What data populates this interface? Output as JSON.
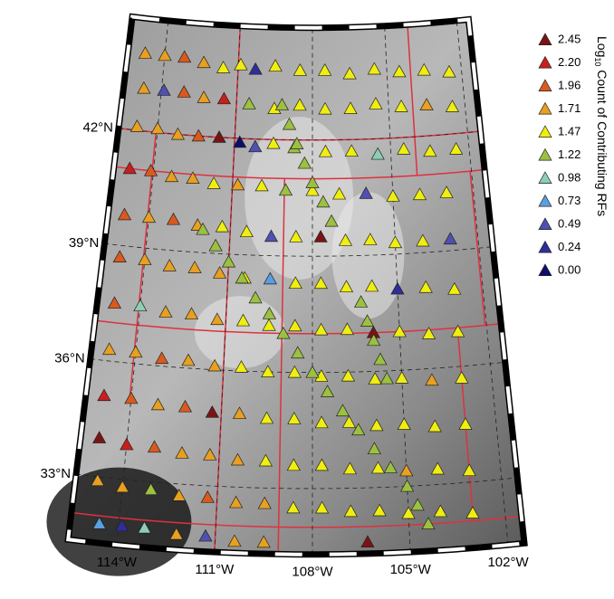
{
  "map": {
    "legend": {
      "title_prefix": "Log",
      "title_sub": "10",
      "title_suffix": " Count of Contributing RFs",
      "entries": [
        {
          "value": 2.45,
          "label": "2.45",
          "color": "#7a1414"
        },
        {
          "value": 2.2,
          "label": "2.20",
          "color": "#c81e1e"
        },
        {
          "value": 1.96,
          "label": "1.96",
          "color": "#d95a1e"
        },
        {
          "value": 1.71,
          "label": "1.71",
          "color": "#e8a020"
        },
        {
          "value": 1.47,
          "label": "1.47",
          "color": "#f0ee10"
        },
        {
          "value": 1.22,
          "label": "1.22",
          "color": "#9cc040"
        },
        {
          "value": 0.98,
          "label": "0.98",
          "color": "#8ccfb4"
        },
        {
          "value": 0.73,
          "label": "0.73",
          "color": "#5a9fe0"
        },
        {
          "value": 0.49,
          "label": "0.49",
          "color": "#5050b0"
        },
        {
          "value": 0.24,
          "label": "0.24",
          "color": "#2e2e9a"
        },
        {
          "value": 0,
          "label": "0.00",
          "color": "#0e0e6a"
        }
      ]
    },
    "lat_ticks": [
      {
        "value": 42,
        "label": "42°N"
      },
      {
        "value": 39,
        "label": "39°N"
      },
      {
        "value": 36,
        "label": "36°N"
      },
      {
        "value": 33,
        "label": "33°N"
      }
    ],
    "lon_ticks": [
      {
        "value": -114,
        "label": "114°W"
      },
      {
        "value": -111,
        "label": "111°W"
      },
      {
        "value": -108,
        "label": "108°W"
      },
      {
        "value": -105,
        "label": "105°W"
      },
      {
        "value": -102,
        "label": "102°W"
      }
    ],
    "lonlim": [
      -115.5,
      -101.5
    ],
    "latlim": [
      31.3,
      44.9
    ],
    "stations": [
      [
        -114.8,
        44.0,
        1.71
      ],
      [
        -114,
        44,
        1.71
      ],
      [
        -113.2,
        44,
        1.96
      ],
      [
        -112.4,
        43.9,
        1.71
      ],
      [
        -111.6,
        43.8,
        1.47
      ],
      [
        -110.9,
        43.9,
        1.47
      ],
      [
        -110.3,
        43.8,
        0.24
      ],
      [
        -109.5,
        43.9,
        1.47
      ],
      [
        -108.5,
        43.8,
        1.47
      ],
      [
        -107.5,
        43.8,
        1.47
      ],
      [
        -106.5,
        43.7,
        1.47
      ],
      [
        -105.5,
        43.8,
        1.47
      ],
      [
        -104.5,
        43.7,
        1.47
      ],
      [
        -103.5,
        43.7,
        1.47
      ],
      [
        -102.5,
        43.6,
        1.47
      ],
      [
        -114.7,
        43.1,
        1.71
      ],
      [
        -113.9,
        43.1,
        0.49
      ],
      [
        -113.1,
        43.1,
        1.96
      ],
      [
        -112.3,
        43,
        1.71
      ],
      [
        -111.5,
        43,
        2.2
      ],
      [
        -110.5,
        42.9,
        1.22
      ],
      [
        -109.5,
        42.8,
        1.47
      ],
      [
        -108.5,
        42.9,
        1.47
      ],
      [
        -107.5,
        42.8,
        1.47
      ],
      [
        -106.5,
        42.8,
        1.47
      ],
      [
        -105.5,
        42.9,
        1.47
      ],
      [
        -104.5,
        42.8,
        1.47
      ],
      [
        -103.5,
        42.8,
        1.71
      ],
      [
        -102.5,
        42.7,
        1.47
      ],
      [
        -114.8,
        42.1,
        1.71
      ],
      [
        -114,
        42.1,
        1.71
      ],
      [
        -113.2,
        42,
        1.71
      ],
      [
        -112.4,
        42,
        1.96
      ],
      [
        -111.6,
        42,
        2.45
      ],
      [
        -110.8,
        41.9,
        0
      ],
      [
        -110.2,
        41.8,
        0.49
      ],
      [
        -109.5,
        41.9,
        1.47
      ],
      [
        -108.7,
        41.8,
        1.22
      ],
      [
        -107.5,
        41.7,
        1.47
      ],
      [
        -106.5,
        41.7,
        1.47
      ],
      [
        -105.5,
        41.6,
        0.98
      ],
      [
        -104.5,
        41.7,
        1.47
      ],
      [
        -103.5,
        41.6,
        1.47
      ],
      [
        -102.5,
        41.6,
        1.47
      ],
      [
        -114.9,
        41,
        2.2
      ],
      [
        -114.1,
        41,
        1.96
      ],
      [
        -113.3,
        40.9,
        1.71
      ],
      [
        -112.5,
        40.9,
        1.71
      ],
      [
        -111.7,
        40.8,
        1.47
      ],
      [
        -110.8,
        40.8,
        1.71
      ],
      [
        -109.9,
        40.8,
        1.47
      ],
      [
        -109,
        40.7,
        1.22
      ],
      [
        -108,
        40.7,
        1.47
      ],
      [
        -107,
        40.6,
        1.47
      ],
      [
        -106,
        40.6,
        0.49
      ],
      [
        -105,
        40.5,
        1.47
      ],
      [
        -104,
        40.5,
        1.47
      ],
      [
        -103,
        40.5,
        1.47
      ],
      [
        -114.9,
        39.8,
        1.96
      ],
      [
        -114,
        39.8,
        1.71
      ],
      [
        -113.1,
        39.8,
        1.96
      ],
      [
        -112.2,
        39.7,
        1.71
      ],
      [
        -111.3,
        39.7,
        1.47
      ],
      [
        -110.4,
        39.6,
        1.47
      ],
      [
        -109.5,
        39.5,
        0.49
      ],
      [
        -108.6,
        39.5,
        1.47
      ],
      [
        -107.7,
        39.5,
        2.45
      ],
      [
        -106.8,
        39.4,
        1.47
      ],
      [
        -105.9,
        39.4,
        1.47
      ],
      [
        -105,
        39.3,
        1.47
      ],
      [
        -104,
        39.3,
        1.47
      ],
      [
        -103,
        39.3,
        0.49
      ],
      [
        -114.9,
        38.7,
        1.96
      ],
      [
        -114,
        38.7,
        1.71
      ],
      [
        -113.1,
        38.6,
        1.71
      ],
      [
        -112.2,
        38.6,
        1.71
      ],
      [
        -111.3,
        38.5,
        1.71
      ],
      [
        -110.4,
        38.4,
        1.47
      ],
      [
        -109.5,
        38.4,
        0.73
      ],
      [
        -108.6,
        38.3,
        1.47
      ],
      [
        -107.7,
        38.3,
        1.47
      ],
      [
        -106.8,
        38.2,
        1.47
      ],
      [
        -105.9,
        38.2,
        1.47
      ],
      [
        -105,
        38.1,
        0.24
      ],
      [
        -104,
        38.1,
        1.47
      ],
      [
        -103,
        38,
        1.47
      ],
      [
        -114.9,
        37.5,
        1.96
      ],
      [
        -114,
        37.5,
        0.98
      ],
      [
        -113.1,
        37.4,
        1.71
      ],
      [
        -112.2,
        37.4,
        1.71
      ],
      [
        -111.3,
        37.3,
        1.71
      ],
      [
        -110.4,
        37.3,
        1.47
      ],
      [
        -109.5,
        37.2,
        1.47
      ],
      [
        -108.6,
        37.2,
        1.47
      ],
      [
        -107.7,
        37.1,
        1.47
      ],
      [
        -106.8,
        37.1,
        1.47
      ],
      [
        -105.9,
        37,
        2.45
      ],
      [
        -105,
        37,
        1.47
      ],
      [
        -104,
        36.9,
        1.47
      ],
      [
        -103,
        36.9,
        1.47
      ],
      [
        -114.9,
        36.3,
        1.71
      ],
      [
        -114,
        36.3,
        1.71
      ],
      [
        -113.1,
        36.2,
        1.96
      ],
      [
        -112.2,
        36.2,
        1.71
      ],
      [
        -111.3,
        36.1,
        1.71
      ],
      [
        -110.4,
        36.1,
        1.47
      ],
      [
        -109.5,
        36,
        1.47
      ],
      [
        -108.6,
        36,
        1.47
      ],
      [
        -107.7,
        35.9,
        1.47
      ],
      [
        -106.8,
        35.9,
        1.47
      ],
      [
        -105.9,
        35.8,
        1.47
      ],
      [
        -105,
        35.8,
        1.47
      ],
      [
        -104,
        35.7,
        1.71
      ],
      [
        -103,
        35.7,
        1.47
      ],
      [
        -114.9,
        35.1,
        2.2
      ],
      [
        -114,
        35.1,
        1.96
      ],
      [
        -113.1,
        35,
        1.71
      ],
      [
        -112.2,
        35,
        1.96
      ],
      [
        -111.3,
        34.9,
        2.45
      ],
      [
        -110.4,
        34.9,
        1.71
      ],
      [
        -109.5,
        34.8,
        1.47
      ],
      [
        -108.6,
        34.8,
        1.47
      ],
      [
        -107.7,
        34.7,
        1.47
      ],
      [
        -106.8,
        34.7,
        1.47
      ],
      [
        -105.9,
        34.6,
        1.47
      ],
      [
        -105,
        34.6,
        1.47
      ],
      [
        -104,
        34.5,
        1.47
      ],
      [
        -103,
        34.5,
        1.47
      ],
      [
        -114.9,
        34,
        2.45
      ],
      [
        -114,
        33.9,
        2.2
      ],
      [
        -113.1,
        33.9,
        1.96
      ],
      [
        -112.2,
        33.8,
        1.71
      ],
      [
        -111.3,
        33.8,
        1.71
      ],
      [
        -110.4,
        33.7,
        1.71
      ],
      [
        -109.5,
        33.7,
        1.47
      ],
      [
        -108.6,
        33.6,
        1.47
      ],
      [
        -107.7,
        33.6,
        1.47
      ],
      [
        -106.8,
        33.5,
        1.47
      ],
      [
        -105.9,
        33.5,
        1.47
      ],
      [
        -105,
        33.4,
        1.71
      ],
      [
        -104,
        33.4,
        1.47
      ],
      [
        -103,
        33.3,
        1.47
      ],
      [
        -114.8,
        32.9,
        1.71
      ],
      [
        -114,
        32.8,
        1.71
      ],
      [
        -113.1,
        32.8,
        1.22
      ],
      [
        -112.2,
        32.7,
        1.71
      ],
      [
        -111.3,
        32.7,
        1.96
      ],
      [
        -110.4,
        32.6,
        1.71
      ],
      [
        -109.5,
        32.6,
        1.71
      ],
      [
        -108.6,
        32.5,
        1.47
      ],
      [
        -107.7,
        32.5,
        1.47
      ],
      [
        -106.8,
        32.4,
        1.47
      ],
      [
        -105.9,
        32.4,
        1.47
      ],
      [
        -105,
        32.3,
        1.47
      ],
      [
        -104,
        32.3,
        1.47
      ],
      [
        -103,
        32.2,
        1.47
      ],
      [
        -114.6,
        31.8,
        0.73
      ],
      [
        -113.9,
        31.8,
        0.24
      ],
      [
        -113.2,
        31.8,
        0.98
      ],
      [
        -112.2,
        31.7,
        1.71
      ],
      [
        -111.3,
        31.7,
        0.49
      ],
      [
        -110.4,
        31.6,
        1.71
      ],
      [
        -109.5,
        31.6,
        1.71
      ],
      [
        -106.3,
        31.6,
        2.45
      ],
      [
        -112,
        39.6,
        1.22
      ],
      [
        -111.5,
        39.2,
        1.22
      ],
      [
        -111,
        38.8,
        1.22
      ],
      [
        -110.5,
        38.4,
        1.22
      ],
      [
        -110,
        37.9,
        1.22
      ],
      [
        -109.5,
        37.5,
        1.22
      ],
      [
        -109,
        37,
        1.22
      ],
      [
        -108.5,
        36.5,
        1.22
      ],
      [
        -108,
        36,
        1.22
      ],
      [
        -107.5,
        35.5,
        1.22
      ],
      [
        -107,
        35,
        1.22
      ],
      [
        -106.5,
        34.5,
        1.22
      ],
      [
        -106,
        34,
        1.22
      ],
      [
        -105.5,
        33.5,
        1.22
      ],
      [
        -105,
        33,
        1.22
      ],
      [
        -104.7,
        32.5,
        1.22
      ],
      [
        -104.4,
        32,
        1.22
      ],
      [
        -109.2,
        42.9,
        1.22
      ],
      [
        -108.9,
        42.4,
        1.22
      ],
      [
        -108.6,
        41.9,
        1.22
      ],
      [
        -108.3,
        41.4,
        1.22
      ],
      [
        -108,
        40.9,
        1.22
      ],
      [
        -107.6,
        40.4,
        1.22
      ],
      [
        -107.3,
        39.9,
        1.22
      ],
      [
        -106.3,
        37.8,
        1.22
      ],
      [
        -106.1,
        37.3,
        1.22
      ],
      [
        -105.9,
        36.8,
        1.22
      ],
      [
        -105.7,
        36.3,
        1.22
      ],
      [
        -105.5,
        35.8,
        1.22
      ]
    ]
  }
}
